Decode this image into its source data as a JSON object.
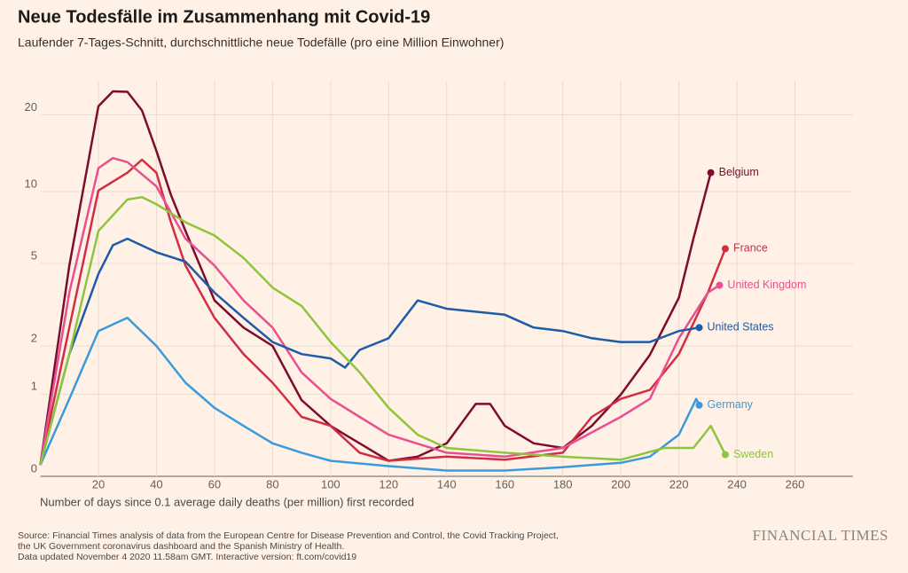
{
  "chart_data": {
    "type": "line",
    "title": "Neue Todesfälle im Zusammenhang mit Covid-19",
    "subtitle": "Laufender 7-Tages-Schnitt, durchschnittliche neue Todefälle (pro eine Million Einwohner)",
    "x_label": "Number of days since 0.1 average daily deaths (per million) first recorded",
    "source": [
      "Source: Financial Times analysis of data from the European Centre for Disease Prevention and Control, the Covid Tracking Project,",
      "the UK Government coronavirus dashboard and the Spanish Ministry of Health.",
      "Data updated November 4 2020 11.58am GMT. Interactive version: ft.com/covid19"
    ],
    "brand": "FINANCIAL TIMES",
    "yscale": "log1p",
    "grid": true,
    "xlim": [
      0,
      280
    ],
    "xticks": [
      20,
      40,
      60,
      80,
      100,
      120,
      140,
      160,
      180,
      200,
      220,
      240,
      260
    ],
    "ylim": [
      0,
      27
    ],
    "yticks": [
      0,
      1,
      2,
      5,
      10,
      20
    ],
    "series": [
      {
        "name": "Belgium",
        "color": "#7d0c2e",
        "x": [
          0,
          10,
          20,
          25,
          30,
          35,
          40,
          45,
          50,
          55,
          60,
          70,
          80,
          90,
          100,
          105,
          110,
          120,
          130,
          140,
          150,
          155,
          160,
          170,
          180,
          190,
          200,
          210,
          220,
          225,
          231
        ],
        "values": [
          0.1,
          4.9,
          21.6,
          24.6,
          24.5,
          20.8,
          14.5,
          9.7,
          6.9,
          4.9,
          3.4,
          2.5,
          2,
          0.9,
          0.53,
          0.42,
          0.32,
          0.14,
          0.18,
          0.32,
          0.84,
          0.84,
          0.53,
          0.32,
          0.27,
          0.53,
          0.99,
          1.78,
          3.5,
          6.4,
          11.9
        ]
      },
      {
        "name": "France",
        "color": "#d02e42",
        "x": [
          0,
          10,
          20,
          30,
          35,
          40,
          45,
          50,
          60,
          70,
          80,
          90,
          100,
          110,
          120,
          140,
          160,
          180,
          190,
          200,
          210,
          220,
          230,
          236
        ],
        "values": [
          0.1,
          2.5,
          10.1,
          11.9,
          13.4,
          11.9,
          7.5,
          4.9,
          2.8,
          1.8,
          1.2,
          0.65,
          0.53,
          0.22,
          0.14,
          0.18,
          0.15,
          0.22,
          0.65,
          0.92,
          1.07,
          1.8,
          3.7,
          5.8
        ]
      },
      {
        "name": "United Kingdom",
        "color": "#e9508f",
        "x": [
          0,
          10,
          20,
          25,
          30,
          40,
          50,
          60,
          70,
          80,
          90,
          100,
          110,
          120,
          140,
          160,
          180,
          200,
          210,
          220,
          230,
          234
        ],
        "values": [
          0.1,
          3.7,
          12.4,
          13.6,
          13.1,
          10.5,
          6.4,
          4.9,
          3.4,
          2.5,
          1.4,
          0.92,
          0.65,
          0.42,
          0.22,
          0.18,
          0.27,
          0.65,
          0.92,
          2.2,
          3.7,
          4
        ]
      },
      {
        "name": "United States",
        "color": "#1e5ba8",
        "x": [
          0,
          10,
          20,
          25,
          30,
          40,
          50,
          60,
          70,
          80,
          90,
          100,
          105,
          110,
          120,
          130,
          140,
          160,
          170,
          180,
          190,
          200,
          210,
          220,
          227
        ],
        "values": [
          0.1,
          1.8,
          4.5,
          6,
          6.4,
          5.6,
          5.1,
          3.7,
          2.8,
          2.1,
          1.8,
          1.7,
          1.5,
          1.9,
          2.2,
          3.4,
          3.1,
          2.9,
          2.5,
          2.4,
          2.2,
          2.1,
          2.1,
          2.4,
          2.5
        ]
      },
      {
        "name": "Germany",
        "color": "#3a9bdc",
        "x": [
          0,
          10,
          20,
          30,
          40,
          50,
          60,
          70,
          80,
          90,
          100,
          120,
          140,
          160,
          180,
          200,
          210,
          220,
          226,
          227
        ],
        "values": [
          0.1,
          0.92,
          2.4,
          2.8,
          2,
          1.2,
          0.78,
          0.53,
          0.32,
          0.22,
          0.14,
          0.09,
          0.05,
          0.05,
          0.08,
          0.12,
          0.18,
          0.42,
          0.92,
          0.82
        ]
      },
      {
        "name": "Sweden",
        "color": "#8fc43e",
        "x": [
          0,
          10,
          20,
          30,
          35,
          40,
          50,
          60,
          70,
          80,
          90,
          100,
          110,
          120,
          130,
          140,
          160,
          180,
          200,
          215,
          225,
          231,
          236
        ],
        "values": [
          0.1,
          1.8,
          6.9,
          9.3,
          9.5,
          8.9,
          7.5,
          6.6,
          5.3,
          3.9,
          3.2,
          2.1,
          1.4,
          0.78,
          0.42,
          0.27,
          0.22,
          0.18,
          0.15,
          0.27,
          0.27,
          0.53,
          0.2
        ]
      }
    ]
  }
}
